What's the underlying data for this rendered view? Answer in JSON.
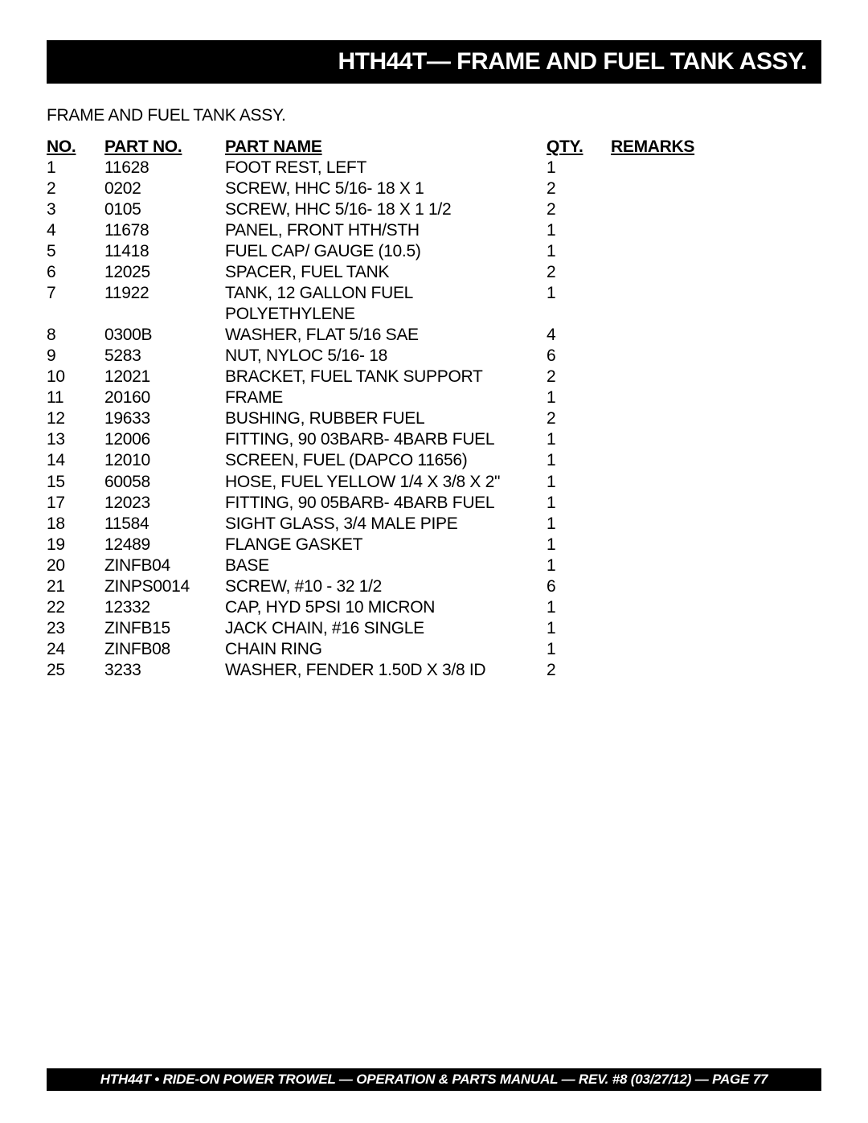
{
  "header": {
    "title": "HTH44T— FRAME AND FUEL TANK ASSY."
  },
  "subtitle": "FRAME AND FUEL TANK ASSY.",
  "columns": {
    "no": "NO.",
    "part": "PART NO.",
    "name": "PART NAME",
    "qty": "QTY.",
    "remarks": "REMARKS"
  },
  "rows": [
    {
      "no": "1",
      "part": "11628",
      "name": "FOOT REST, LEFT",
      "qty": "1",
      "remarks": ""
    },
    {
      "no": "2",
      "part": "0202",
      "name": "SCREW, HHC 5/16- 18 X 1",
      "qty": "2",
      "remarks": ""
    },
    {
      "no": "3",
      "part": "0105",
      "name": "SCREW, HHC 5/16- 18 X 1 1/2",
      "qty": "2",
      "remarks": ""
    },
    {
      "no": "4",
      "part": "11678",
      "name": "PANEL, FRONT HTH/STH",
      "qty": "1",
      "remarks": ""
    },
    {
      "no": "5",
      "part": "11418",
      "name": "FUEL CAP/ GAUGE (10.5)",
      "qty": "1",
      "remarks": ""
    },
    {
      "no": "6",
      "part": "12025",
      "name": "SPACER, FUEL TANK",
      "qty": "2",
      "remarks": ""
    },
    {
      "no": "7",
      "part": "11922",
      "name": "TANK, 12 GALLON FUEL POLYETHYLENE",
      "qty": "1",
      "remarks": ""
    },
    {
      "no": "8",
      "part": "0300B",
      "name": "WASHER, FLAT 5/16 SAE",
      "qty": "4",
      "remarks": ""
    },
    {
      "no": "9",
      "part": "5283",
      "name": "NUT, NYLOC 5/16- 18",
      "qty": "6",
      "remarks": ""
    },
    {
      "no": "10",
      "part": "12021",
      "name": "BRACKET, FUEL TANK SUPPORT",
      "qty": "2",
      "remarks": ""
    },
    {
      "no": "11",
      "part": "20160",
      "name": "FRAME",
      "qty": "1",
      "remarks": ""
    },
    {
      "no": "12",
      "part": "19633",
      "name": "BUSHING, RUBBER FUEL",
      "qty": "2",
      "remarks": ""
    },
    {
      "no": "13",
      "part": "12006",
      "name": "FITTING, 90 03BARB- 4BARB FUEL",
      "qty": "1",
      "remarks": ""
    },
    {
      "no": "14",
      "part": "12010",
      "name": "SCREEN, FUEL (DAPCO 11656)",
      "qty": "1",
      "remarks": ""
    },
    {
      "no": "15",
      "part": "60058",
      "name": "HOSE, FUEL YELLOW 1/4 X 3/8 X 2\"",
      "qty": "1",
      "remarks": ""
    },
    {
      "no": "17",
      "part": "12023",
      "name": "FITTING, 90 05BARB- 4BARB FUEL",
      "qty": "1",
      "remarks": ""
    },
    {
      "no": "18",
      "part": "11584",
      "name": "SIGHT GLASS, 3/4 MALE PIPE",
      "qty": "1",
      "remarks": ""
    },
    {
      "no": "19",
      "part": "12489",
      "name": "FLANGE GASKET",
      "qty": "1",
      "remarks": ""
    },
    {
      "no": "20",
      "part": "ZINFB04",
      "name": "BASE",
      "qty": "1",
      "remarks": ""
    },
    {
      "no": "21",
      "part": "ZINPS0014",
      "name": "SCREW, #10 - 32 1/2",
      "qty": "6",
      "remarks": ""
    },
    {
      "no": "22",
      "part": "12332",
      "name": "CAP, HYD 5PSI 10 MICRON",
      "qty": "1",
      "remarks": ""
    },
    {
      "no": "23",
      "part": "ZINFB15",
      "name": "JACK CHAIN, #16 SINGLE",
      "qty": "1",
      "remarks": ""
    },
    {
      "no": "24",
      "part": "ZINFB08",
      "name": "CHAIN RING",
      "qty": "1",
      "remarks": ""
    },
    {
      "no": "25",
      "part": "3233",
      "name": "WASHER, FENDER 1.50D X 3/8 ID",
      "qty": "2",
      "remarks": ""
    }
  ],
  "footer": {
    "text": "HTH44T • RIDE-ON POWER TROWEL —  OPERATION & PARTS  MANUAL — REV. #8 (03/27/12) — PAGE 77"
  }
}
